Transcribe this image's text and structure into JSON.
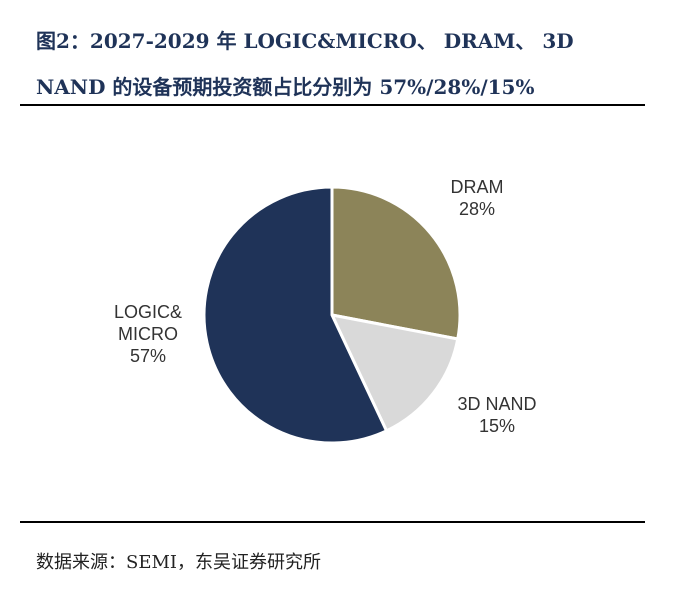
{
  "title": {
    "line1": "图2：2027-2029 年 LOGIC&MICRO、 DRAM、 3D",
    "line2": "NAND 的设备预期投资额占比分别为 57%/28%/15%"
  },
  "source": "数据来源：SEMI，东吴证券研究所",
  "chart_data": {
    "type": "pie",
    "title": "",
    "slices": [
      {
        "name": "DRAM",
        "value": 28,
        "label": "28%",
        "color": "#8c8459"
      },
      {
        "name": "3D NAND",
        "value": 15,
        "label": "15%",
        "color": "#d9d9d9"
      },
      {
        "name": "LOGIC& MICRO",
        "value": 57,
        "label": "57%",
        "color": "#1f3358"
      }
    ],
    "start_angle_deg": 0,
    "direction": "clockwise",
    "legend": "none"
  }
}
